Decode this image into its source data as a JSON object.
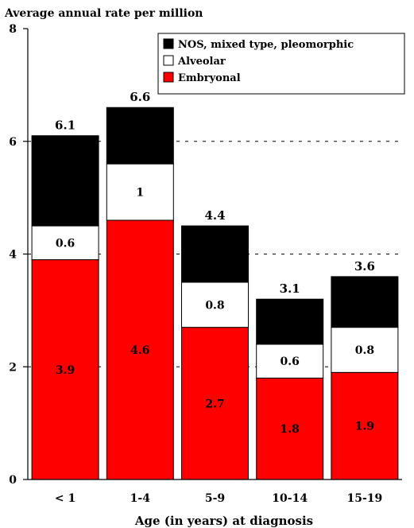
{
  "chart_data": {
    "type": "bar",
    "stacked": true,
    "title": "Average annual rate per million",
    "xlabel": "Age (in years) at diagnosis",
    "ylabel": "",
    "ylim": [
      0,
      8
    ],
    "yticks": [
      0,
      2,
      4,
      6,
      8
    ],
    "grid": "horizontal dashed",
    "legend_position": "top-right",
    "categories": [
      "< 1",
      "1-4",
      "5-9",
      "10-14",
      "15-19"
    ],
    "series": [
      {
        "name": "Embryonal",
        "color": "#ff0000",
        "values": [
          3.9,
          4.6,
          2.7,
          1.8,
          1.9
        ]
      },
      {
        "name": "Alveolar",
        "color": "#ffffff",
        "values": [
          0.6,
          1,
          0.8,
          0.6,
          0.8
        ]
      },
      {
        "name": "NOS, mixed type, pleomorphic",
        "color": "#000000",
        "values": [
          1.6,
          1,
          1,
          0.8,
          0.9
        ]
      }
    ],
    "segment_labels": [
      [
        "3.9",
        "4.6",
        "2.7",
        "1.8",
        "1.9"
      ],
      [
        "0.6",
        "1",
        "0.8",
        "0.6",
        "0.8"
      ],
      [
        "1.6",
        "1",
        "1",
        "0.8",
        "0.9"
      ]
    ],
    "totals": [
      6.1,
      6.6,
      4.4,
      3.1,
      3.6
    ],
    "total_labels": [
      "6.1",
      "6.6",
      "4.4",
      "3.1",
      "3.6"
    ],
    "legend_order": [
      "NOS, mixed type, pleomorphic",
      "Alveolar",
      "Embryonal"
    ]
  }
}
